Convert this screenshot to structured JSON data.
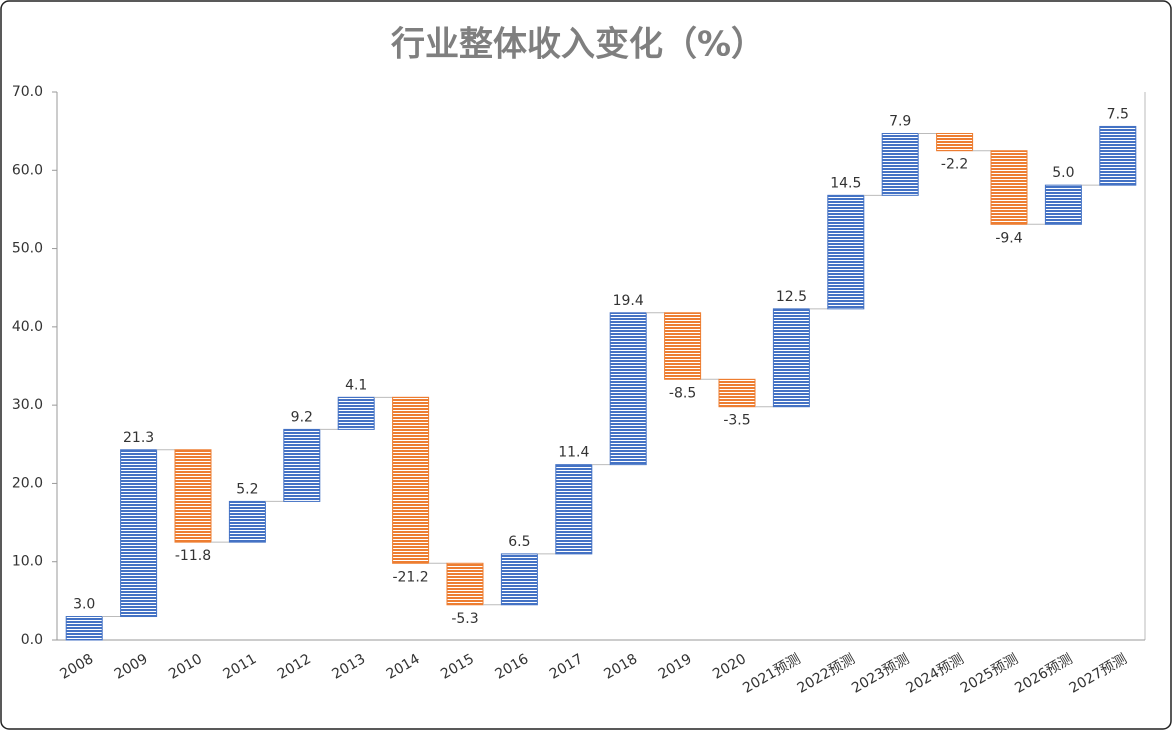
{
  "chart_data": {
    "type": "waterfall",
    "title": "行业整体收入变化（%）",
    "categories": [
      "2008",
      "2009",
      "2010",
      "2011",
      "2012",
      "2013",
      "2014",
      "2015",
      "2016",
      "2017",
      "2018",
      "2019",
      "2020",
      "2021预测",
      "2022预测",
      "2023预测",
      "2024预测",
      "2025预测",
      "2026预测",
      "2027预测"
    ],
    "values": [
      3.0,
      21.3,
      -11.8,
      5.2,
      9.2,
      4.1,
      -21.2,
      -5.3,
      6.5,
      11.4,
      19.4,
      -8.5,
      -3.5,
      12.5,
      14.5,
      7.9,
      -2.2,
      -9.4,
      5.0,
      7.5
    ],
    "value_labels": [
      "3.0",
      "21.3",
      "-11.8",
      "5.2",
      "9.2",
      "4.1",
      "-21.2",
      "-5.3",
      "6.5",
      "11.4",
      "19.4",
      "-8.5",
      "-3.5",
      "12.5",
      "14.5",
      "7.9",
      "-2.2",
      "-9.4",
      "5.0",
      "7.5"
    ],
    "colors": {
      "increase": "#4472c4",
      "decrease": "#ed7d31"
    },
    "ylim": [
      0,
      70
    ],
    "yticks": [
      {
        "value": 0,
        "label": "0.0"
      },
      {
        "value": 10,
        "label": "10.0"
      },
      {
        "value": 20,
        "label": "20.0"
      },
      {
        "value": 30,
        "label": "30.0"
      },
      {
        "value": 40,
        "label": "40.0"
      },
      {
        "value": 50,
        "label": "50.0"
      },
      {
        "value": 60,
        "label": "60.0"
      },
      {
        "value": 70,
        "label": "70.0"
      }
    ],
    "grid": false
  }
}
